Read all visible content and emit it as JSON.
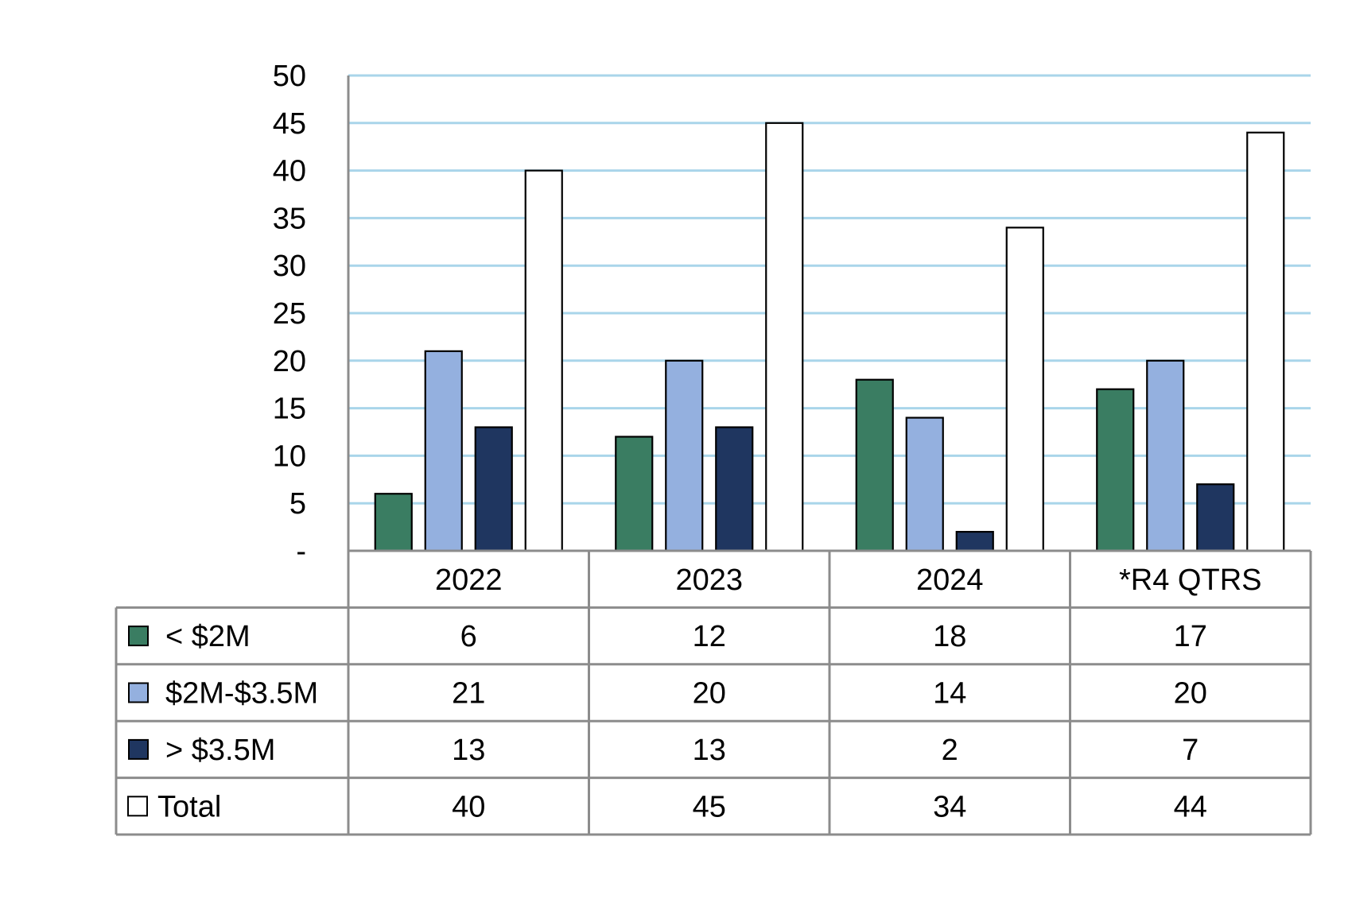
{
  "chart_data": {
    "type": "bar",
    "title": "",
    "xlabel": "",
    "ylabel": "",
    "ylim": [
      0,
      50
    ],
    "yticks": [
      0,
      5,
      10,
      15,
      20,
      25,
      30,
      35,
      40,
      45,
      50
    ],
    "ytick_labels": [
      "-",
      "5",
      "10",
      "15",
      "20",
      "25",
      "30",
      "35",
      "40",
      "45",
      "50"
    ],
    "grid": true,
    "legend": "data-table",
    "categories": [
      "2022",
      "2023",
      "2024",
      "*R4 QTRS"
    ],
    "series": [
      {
        "name": "< $2M",
        "color": "#3a7d62",
        "values": [
          6,
          12,
          18,
          17
        ]
      },
      {
        "name": "$2M-$3.5M",
        "color": "#94b0df",
        "values": [
          21,
          20,
          14,
          20
        ]
      },
      {
        "name": "> $3.5M",
        "color": "#1f3660",
        "values": [
          13,
          13,
          2,
          7
        ]
      },
      {
        "name": "Total",
        "color": "#ffffff",
        "values": [
          40,
          45,
          34,
          44
        ]
      }
    ],
    "colors": {
      "grid": "#a9d5ea",
      "table_border": "#8c8c8c",
      "axis": "#8c8c8c"
    }
  }
}
